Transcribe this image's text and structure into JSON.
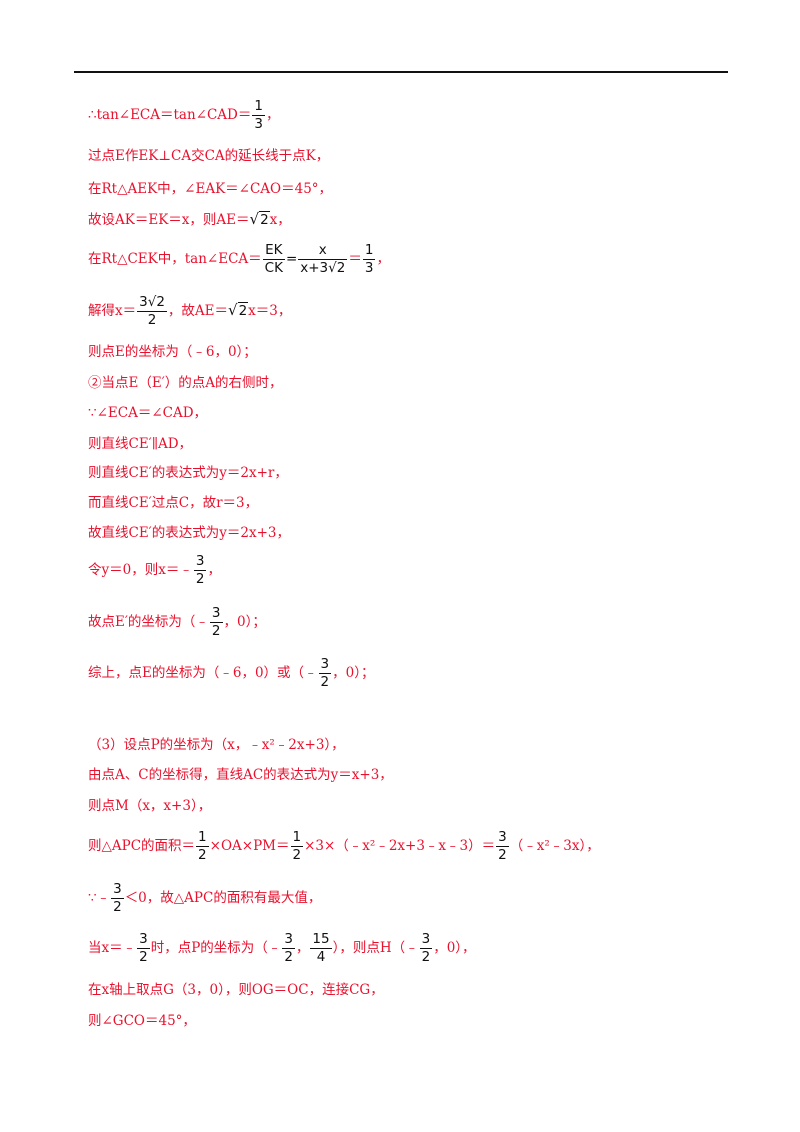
{
  "lines": [
    {
      "pre": "∴tan∠ECA＝tan∠CAD＝",
      "fnum": "1",
      "fden": "3",
      "post": "，"
    },
    {
      "text": "过点E作EK⊥CA交CA的延长线于点K，"
    },
    {
      "text": "在Rt△AEK中，∠EAK＝∠CAO＝45°，"
    },
    {
      "pre": "故设AK＝EK＝x，则AE＝",
      "rad": "√",
      "arg": "2",
      "post": "x，"
    },
    {
      "pre": "在Rt△CEK中，tan∠ECA＝",
      "f1num": "EK",
      "f1den": "CK",
      "mid": "=",
      "f2num": "x",
      "f2den": "x+3√2",
      "mid2": "＝",
      "f3num": "1",
      "f3den": "3",
      "post": "，"
    },
    {
      "pre": "解得x＝",
      "fnum": "3√2",
      "fden": "2",
      "mid": "，故AE＝",
      "rad": "√",
      "arg": "2",
      "post": "x＝3，"
    },
    {
      "text": "则点E的坐标为（﹣6，0）；"
    },
    {
      "text": "②当点E（E′）的点A的右侧时，"
    },
    {
      "text": "∵∠ECA＝∠CAD，"
    },
    {
      "text": "则直线CE′∥AD，"
    },
    {
      "text": "则直线CE′的表达式为y＝2x+r，"
    },
    {
      "text": "而直线CE′过点C，故r＝3，"
    },
    {
      "text": "故直线CE′的表达式为y＝2x+3，"
    },
    {
      "pre": "令y＝0，则x＝﹣",
      "fnum": "3",
      "fden": "2",
      "post": "，"
    },
    {
      "pre": "故点E′的坐标为（﹣",
      "fnum": "3",
      "fden": "2",
      "post": "，0）；"
    },
    {
      "pre": "综上，点E的坐标为（﹣6，0）或（﹣",
      "fnum": "3",
      "fden": "2",
      "post": "，0）；"
    },
    {
      "text": "（3）设点P的坐标为（x，﹣x²﹣2x+3），"
    },
    {
      "text": "由点A、C的坐标得，直线AC的表达式为y＝x+3，"
    },
    {
      "text": "则点M（x，x+3），"
    },
    {
      "pre": "则△APC的面积＝",
      "f1num": "1",
      "f1den": "2",
      "mid": "×OA×PM＝",
      "f2num": "1",
      "f2den": "2",
      "mid2": "×3×（﹣x²﹣2x+3﹣x﹣3）＝",
      "f3num": "3",
      "f3den": "2",
      "post": "（﹣x²﹣3x），"
    },
    {
      "pre": "∵﹣",
      "fnum": "3",
      "fden": "2",
      "post": "＜0，故△APC的面积有最大值，"
    },
    {
      "pre": "当x＝﹣",
      "f1num": "3",
      "f1den": "2",
      "mid": "时，点P的坐标为（﹣",
      "f2num": "3",
      "f2den": "2",
      "mid2": "，",
      "f3num": "15",
      "f3den": "4",
      "mid3": "），则点H（﹣",
      "f4num": "3",
      "f4den": "2",
      "post": "，0），"
    },
    {
      "text": "在x轴上取点G（3，0），则OG＝OC，连接CG，"
    },
    {
      "text": "则∠GCO＝45°，"
    }
  ]
}
